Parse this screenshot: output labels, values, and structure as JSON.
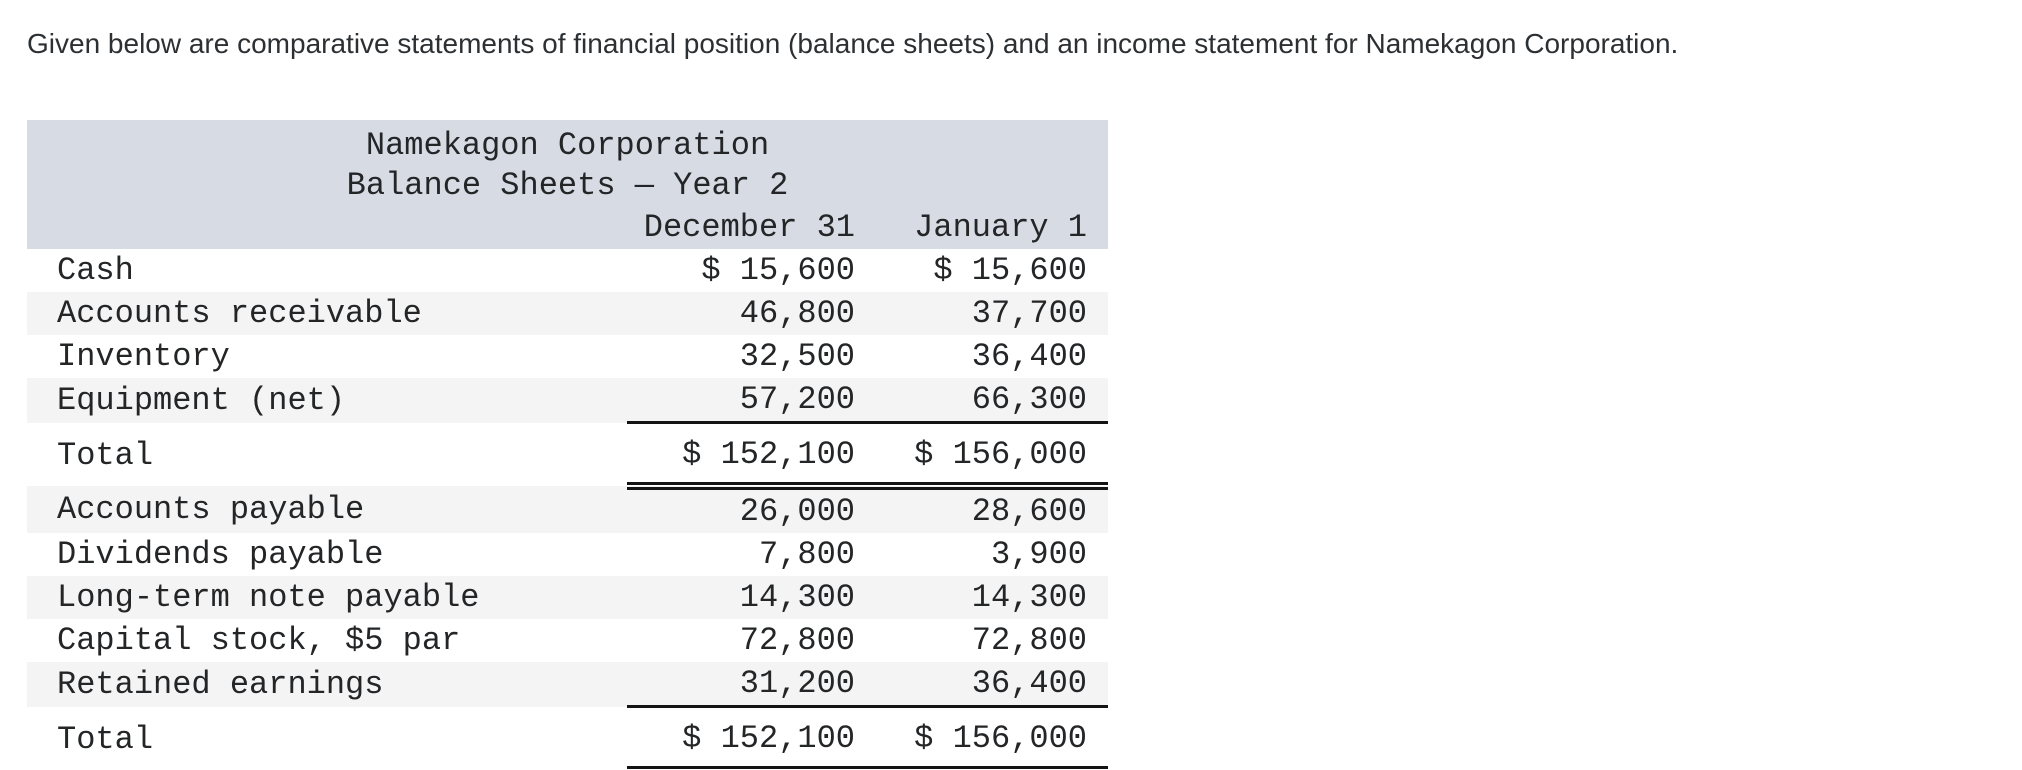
{
  "intro": "Given below are comparative statements of financial position (balance sheets) and an income statement for Namekagon Corporation.",
  "table": {
    "title": "Namekagon Corporation",
    "subtitle": "Balance Sheets — Year 2",
    "col_headers": [
      "December 31",
      "January 1"
    ],
    "rows": [
      {
        "label": "Cash",
        "dec31": "$ 15,600",
        "jan1": "$ 15,600"
      },
      {
        "label": "Accounts receivable",
        "dec31": "46,800",
        "jan1": "37,700"
      },
      {
        "label": "Inventory",
        "dec31": "32,500",
        "jan1": "36,400"
      },
      {
        "label": "Equipment (net)",
        "dec31": "57,200",
        "jan1": "66,300"
      },
      {
        "label": "Total",
        "dec31": "$ 152,100",
        "jan1": "$ 156,000"
      },
      {
        "label": "Accounts payable",
        "dec31": "26,000",
        "jan1": "28,600"
      },
      {
        "label": "Dividends payable",
        "dec31": "7,800",
        "jan1": "3,900"
      },
      {
        "label": "Long-term note payable",
        "dec31": "14,300",
        "jan1": "14,300"
      },
      {
        "label": "Capital stock, $5 par",
        "dec31": "72,800",
        "jan1": "72,800"
      },
      {
        "label": "Retained earnings",
        "dec31": "31,200",
        "jan1": "36,400"
      },
      {
        "label": "Total",
        "dec31": "$ 152,100",
        "jan1": "$ 156,000"
      }
    ],
    "colors": {
      "header_bg": "#d6dbe4",
      "stripe_bg": "#f4f4f5",
      "text": "#232527",
      "rule": "#141414"
    }
  }
}
